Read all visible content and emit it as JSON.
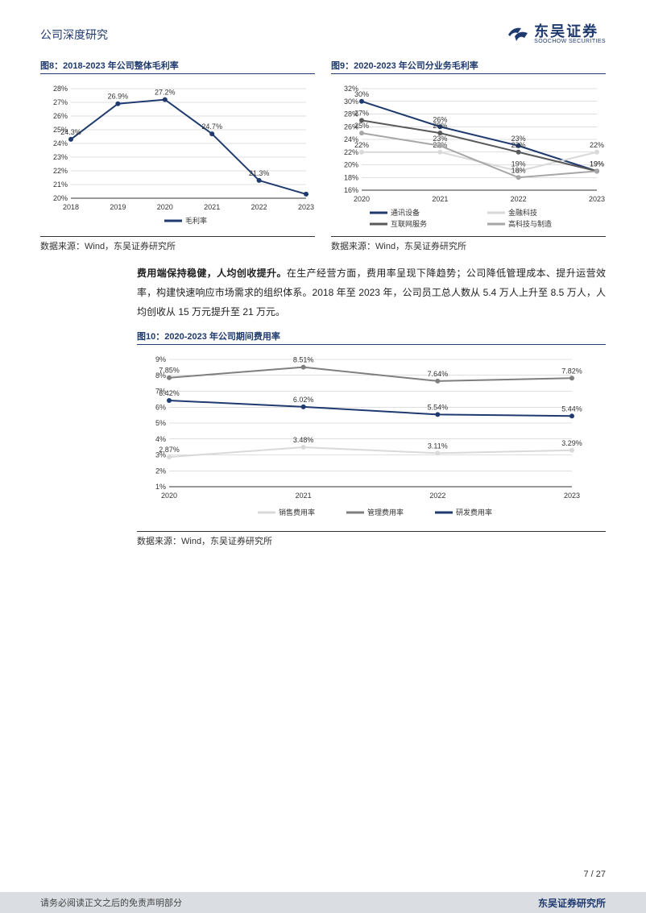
{
  "doc_title": "公司深度研究",
  "logo": {
    "cn": "东吴证券",
    "en": "SOOCHOW SECURITIES"
  },
  "fig8": {
    "title": "图8：2018-2023 年公司整体毛利率",
    "type": "line",
    "categories": [
      "2018",
      "2019",
      "2020",
      "2021",
      "2022",
      "2023"
    ],
    "series": {
      "name": "毛利率",
      "color": "#1f3a6e",
      "values": [
        24.3,
        26.9,
        27.2,
        24.7,
        21.3,
        20.3
      ],
      "labels": [
        "24.3%",
        "26.9%",
        "27.2%",
        "24.7%",
        "21.3%",
        ""
      ]
    },
    "ylim": [
      20,
      28
    ],
    "ytick_step": 1,
    "source": "数据来源：Wind，东吴证券研究所",
    "bg": "#ffffff",
    "grid_color": "#bfbfbf",
    "axis_fontsize": 9,
    "label_fontsize": 9
  },
  "fig9": {
    "title": "图9：2020-2023 年公司分业务毛利率",
    "type": "line",
    "categories": [
      "2020",
      "2021",
      "2022",
      "2023"
    ],
    "series": [
      {
        "name": "通讯设备",
        "color": "#1f3a6e",
        "values": [
          30,
          26,
          23,
          19
        ],
        "labels": [
          "30%",
          "26%",
          "23%",
          "19%"
        ]
      },
      {
        "name": "金融科技",
        "color": "#d9d9d9",
        "values": [
          22,
          22,
          19,
          22
        ],
        "labels": [
          "22%",
          "22%",
          "19%",
          "22%"
        ]
      },
      {
        "name": "互联网服务",
        "color": "#595959",
        "values": [
          27,
          25,
          22,
          19
        ],
        "labels": [
          "27%",
          "25%",
          "22%",
          "19%"
        ]
      },
      {
        "name": "高科技与制造",
        "color": "#a6a6a6",
        "values": [
          25,
          23,
          18,
          19
        ],
        "labels": [
          "25%",
          "23%",
          "18%",
          ""
        ]
      }
    ],
    "ylim": [
      16,
      32
    ],
    "ytick_step": 2,
    "source": "数据来源：Wind，东吴证券研究所",
    "bg": "#ffffff",
    "grid_color": "#bfbfbf",
    "axis_fontsize": 9
  },
  "body_text": {
    "bold": "费用端保持稳健，人均创收提升。",
    "rest": "在生产经营方面，费用率呈现下降趋势；公司降低管理成本、提升运营效率，构建快速响应市场需求的组织体系。2018 年至 2023 年，公司员工总人数从 5.4 万人上升至 8.5 万人，人均创收从 15 万元提升至 21 万元。"
  },
  "fig10": {
    "title": "图10：2020-2023 年公司期间费用率",
    "type": "line",
    "categories": [
      "2020",
      "2021",
      "2022",
      "2023"
    ],
    "series": [
      {
        "name": "销售费用率",
        "color": "#d9d9d9",
        "values": [
          2.87,
          3.48,
          3.11,
          3.29
        ],
        "labels": [
          "2.87%",
          "3.48%",
          "3.11%",
          "3.29%"
        ]
      },
      {
        "name": "管理费用率",
        "color": "#7f7f7f",
        "values": [
          7.85,
          8.51,
          7.64,
          7.82
        ],
        "labels": [
          "7.85%",
          "8.51%",
          "7.64%",
          "7.82%"
        ]
      },
      {
        "name": "研发费用率",
        "color": "#1f3a6e",
        "values": [
          6.42,
          6.02,
          5.54,
          5.44
        ],
        "labels": [
          "6.42%",
          "6.02%",
          "5.54%",
          "5.44%"
        ]
      }
    ],
    "ylim": [
      1,
      9
    ],
    "ytick_step": 1,
    "source": "数据来源：Wind，东吴证券研究所",
    "bg": "#ffffff",
    "grid_color": "#bfbfbf",
    "axis_fontsize": 9
  },
  "page_num": "7 / 27",
  "footer": {
    "left": "请务必阅读正文之后的免责声明部分",
    "right": "东吴证券研究所"
  }
}
